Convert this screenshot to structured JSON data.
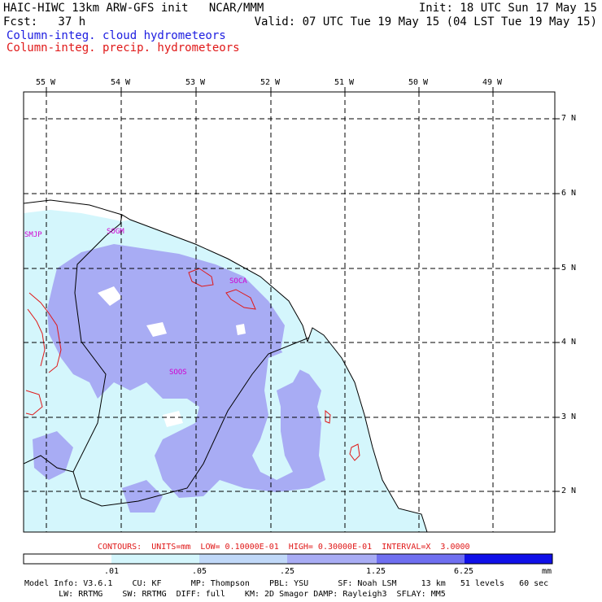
{
  "header": {
    "line1_left": "HAIC-HIWC 13km ARW-GFS init   NCAR/MMM",
    "line1_right": "Init: 18 UTC Sun 17 May 15",
    "line2_left": "Fcst:   37 h",
    "line2_right": "Valid: 07 UTC Tue 19 May 15 (04 LST Tue 19 May 15)",
    "field1": "Column-integ. cloud hydrometeors",
    "field2": "Column-integ. precip. hydrometeors"
  },
  "colors": {
    "field1": "#1c1ce0",
    "field2": "#e01818",
    "lightest": "#d4f6fc",
    "medium": "#a8acf4",
    "ocean": "#ffffff"
  },
  "map": {
    "lon_labels": [
      "55 W",
      "54 W",
      "53 W",
      "52 W",
      "51 W",
      "50 W",
      "49 W"
    ],
    "lat_labels": [
      "7 N",
      "6 N",
      "5 N",
      "4 N",
      "3 N",
      "2 N"
    ],
    "stations": [
      "SMJP",
      "SOGM",
      "SOCA",
      "SOOS"
    ]
  },
  "contour_info": "CONTOURS:  UNITS=mm  LOW= 0.10000E-01  HIGH= 0.30000E-01  INTERVAL=X  3.0000",
  "colorbar": {
    "ticks": [
      ".01",
      ".05",
      ".25",
      "1.25",
      "6.25"
    ],
    "unit": "mm",
    "colors": [
      "#ffffff",
      "#d4f6fc",
      "#c0d8f8",
      "#a8acf4",
      "#6f6ff0",
      "#1010e8"
    ]
  },
  "footer": {
    "line1": "Model Info: V3.6.1    CU: KF      MP: Thompson    PBL: YSU      SF: Noah LSM     13 km   51 levels   60 sec",
    "line2": "       LW: RRTMG    SW: RRTMG  DIFF: full    KM: 2D Smagor DAMP: Rayleigh3  SFLAY: MM5"
  }
}
